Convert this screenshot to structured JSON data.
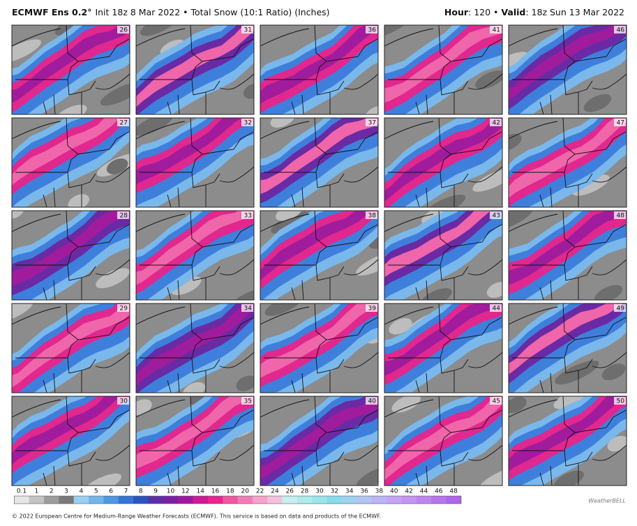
{
  "header": {
    "model": "ECMWF Ens 0.2°",
    "description": "Init 18z 8 Mar 2022 • Total Snow (10:1 Ratio) (Inches)",
    "hour_label": "Hour",
    "hour": ": 120 •",
    "valid_label": "Valid",
    "valid": ": 18z Sun 13 Mar 2022"
  },
  "panels": [
    26,
    31,
    36,
    41,
    46,
    27,
    32,
    37,
    42,
    47,
    28,
    33,
    38,
    43,
    48,
    29,
    34,
    39,
    44,
    49,
    30,
    35,
    40,
    45,
    50
  ],
  "colorbar": {
    "labels": [
      0.1,
      1,
      2,
      3,
      4,
      5,
      6,
      7,
      8,
      9,
      10,
      12,
      14,
      16,
      18,
      20,
      22,
      24,
      26,
      28,
      30,
      32,
      34,
      36,
      38,
      40,
      42,
      44,
      46,
      48
    ],
    "colors": [
      "#e6e6e6",
      "#c4c4c4",
      "#9c9c9c",
      "#7a7a7a",
      "#9ccff2",
      "#72b6ec",
      "#4e96e2",
      "#3574d8",
      "#2c52c4",
      "#5a30a6",
      "#7c1fa2",
      "#a0189e",
      "#cc1a98",
      "#ea2490",
      "#f2569e",
      "#f47cb6",
      "#f6a2cc",
      "#f2c2dc",
      "#c6f0f0",
      "#aeeceb",
      "#98e6e8",
      "#86dcea",
      "#9ed2f0",
      "#b2c6f4",
      "#bcb4f6",
      "#c4a4f4",
      "#c694f2",
      "#c084f0",
      "#b874ee",
      "#b064ec"
    ]
  },
  "logo": "WeatherBELL",
  "footer": "© 2022 European Centre for Medium-Range Weather Forecasts (ECMWF). This service is based on data and products of the ECMWF."
}
